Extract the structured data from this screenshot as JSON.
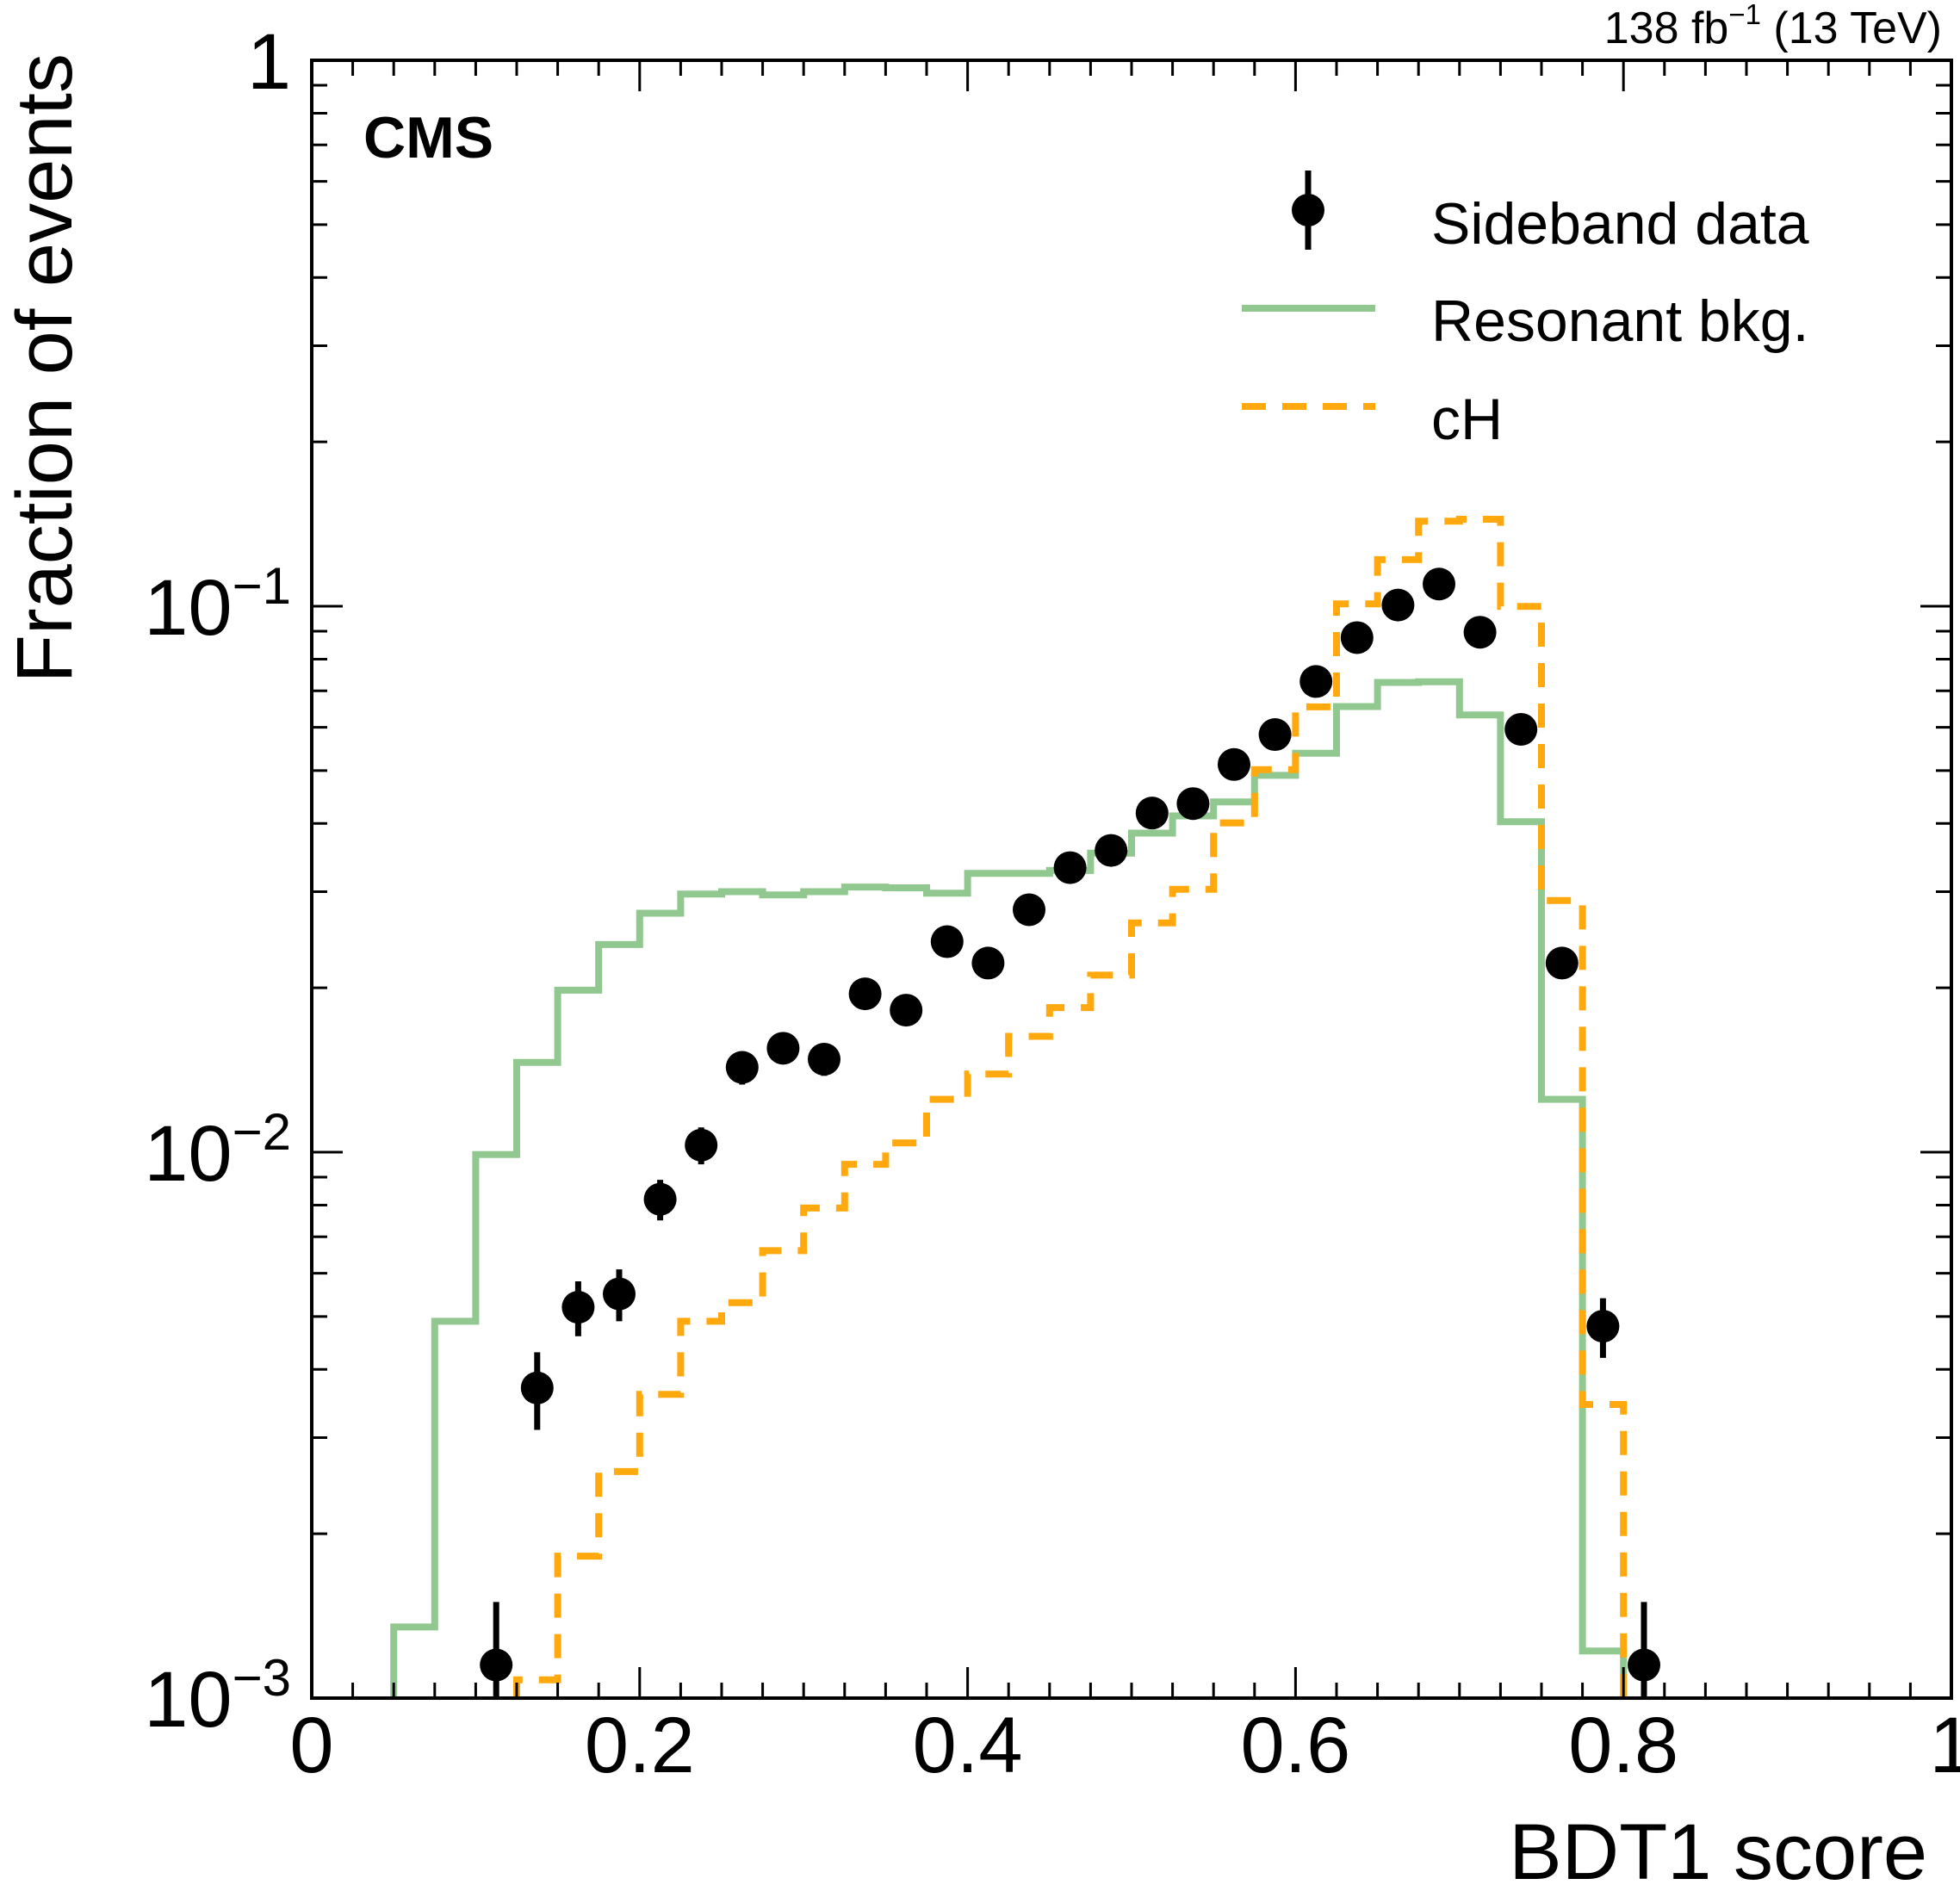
{
  "chart_data": {
    "type": "step-histogram",
    "experiment": "CMS",
    "lumi_label": "138 fb",
    "lumi_exponent": "−1",
    "lumi_energy": " (13 TeV)",
    "xlabel": "BDT1 score",
    "ylabel": "Fraction of events",
    "xlim": [
      0,
      1
    ],
    "ylim": [
      0.001,
      1
    ],
    "yscale": "log",
    "x_ticks": [
      {
        "value": 0,
        "label": "0"
      },
      {
        "value": 0.2,
        "label": "0.2"
      },
      {
        "value": 0.4,
        "label": "0.4"
      },
      {
        "value": 0.6,
        "label": "0.6"
      },
      {
        "value": 0.8,
        "label": "0.8"
      },
      {
        "value": 1,
        "label": "1"
      }
    ],
    "y_ticks": [
      {
        "value": 1,
        "base": "1",
        "exp": ""
      },
      {
        "value": 0.1,
        "base": "10",
        "exp": "−1"
      },
      {
        "value": 0.01,
        "base": "10",
        "exp": "−2"
      },
      {
        "value": 0.001,
        "base": "10",
        "exp": "−3"
      }
    ],
    "bin_width": 0.025,
    "legend_position": "top-right",
    "series": [
      {
        "name": "Sideband data",
        "style": "points",
        "color": "#000000",
        "x": [
          0.1125,
          0.1375,
          0.1625,
          0.1875,
          0.2125,
          0.2375,
          0.2625,
          0.2875,
          0.3125,
          0.3375,
          0.3625,
          0.3875,
          0.4125,
          0.4375,
          0.4625,
          0.4875,
          0.5125,
          0.5375,
          0.5625,
          0.5875,
          0.6125,
          0.6375,
          0.6625,
          0.6875,
          0.7125,
          0.7375,
          0.7625,
          0.7875,
          0.8125
        ],
        "y": [
          0.00115,
          0.0037,
          0.0052,
          0.0055,
          0.0082,
          0.0103,
          0.0143,
          0.0155,
          0.0148,
          0.0195,
          0.0182,
          0.0243,
          0.0222,
          0.0278,
          0.0332,
          0.0357,
          0.0418,
          0.0435,
          0.0513,
          0.0582,
          0.0728,
          0.0876,
          0.1005,
          0.1098,
          0.0896,
          0.0595,
          0.0222,
          0.0048,
          0.00115
        ],
        "err_lo": [
          0.00035,
          0.0006,
          0.0006,
          0.0006,
          0.0007,
          0.0008,
          0.001,
          0.001,
          0.001,
          0.0011,
          0.0011,
          0.0012,
          0.0012,
          0.0013,
          0.0014,
          0.0015,
          0.0016,
          0.0016,
          0.0017,
          0.0018,
          0.002,
          0.0022,
          0.0024,
          0.0025,
          0.0022,
          0.0018,
          0.0012,
          0.0006,
          0.00035
        ],
        "err_hi": [
          0.00035,
          0.0006,
          0.0006,
          0.0006,
          0.0007,
          0.0008,
          0.001,
          0.001,
          0.001,
          0.0011,
          0.0011,
          0.0012,
          0.0012,
          0.0013,
          0.0014,
          0.0015,
          0.0016,
          0.0016,
          0.0017,
          0.0018,
          0.002,
          0.0022,
          0.0024,
          0.0025,
          0.0022,
          0.0018,
          0.0012,
          0.0006,
          0.00035
        ]
      },
      {
        "name": "Resonant bkg.",
        "style": "step-solid",
        "color": "#90c88f",
        "bin_edges": [
          0.05,
          0.075,
          0.1,
          0.125,
          0.15,
          0.175,
          0.2,
          0.225,
          0.25,
          0.275,
          0.3,
          0.325,
          0.35,
          0.375,
          0.4,
          0.425,
          0.45,
          0.475,
          0.5,
          0.525,
          0.55,
          0.575,
          0.6,
          0.625,
          0.65,
          0.675,
          0.7,
          0.725,
          0.75,
          0.775,
          0.8
        ],
        "values": [
          0.00135,
          0.0049,
          0.0099,
          0.0146,
          0.0198,
          0.024,
          0.0274,
          0.0297,
          0.03,
          0.0296,
          0.03,
          0.0306,
          0.0305,
          0.0298,
          0.0324,
          0.0324,
          0.0328,
          0.0353,
          0.0384,
          0.0413,
          0.0438,
          0.049,
          0.0538,
          0.0655,
          0.0725,
          0.0727,
          0.0632,
          0.0403,
          0.0125,
          0.00122
        ]
      },
      {
        "name": "cH",
        "style": "step-dashed",
        "color": "#ffa90e",
        "bin_edges": [
          0.125,
          0.15,
          0.175,
          0.2,
          0.225,
          0.25,
          0.275,
          0.3,
          0.325,
          0.35,
          0.375,
          0.4,
          0.425,
          0.45,
          0.475,
          0.5,
          0.525,
          0.55,
          0.575,
          0.6,
          0.625,
          0.65,
          0.675,
          0.7,
          0.725,
          0.75,
          0.775,
          0.8
        ],
        "values": [
          0.00108,
          0.00182,
          0.0026,
          0.0036,
          0.0049,
          0.0053,
          0.0066,
          0.0079,
          0.0095,
          0.0104,
          0.0125,
          0.0139,
          0.0163,
          0.0184,
          0.0211,
          0.0263,
          0.0303,
          0.0401,
          0.0502,
          0.0654,
          0.101,
          0.1217,
          0.1431,
          0.1443,
          0.0999,
          0.0289,
          0.00345
        ]
      }
    ]
  }
}
